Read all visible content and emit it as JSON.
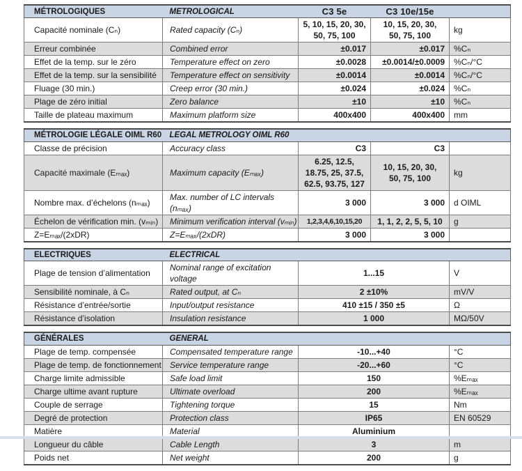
{
  "colors": {
    "section_band_bg": "#c9d4e4",
    "alt_row_bg": "#dcdcdc",
    "border_dark": "#4b4b4b",
    "border_light": "#7d7d7d",
    "text": "#1a1a1a",
    "page_bottom_edge": "#d8dee9"
  },
  "sections": [
    {
      "header": {
        "fr": "MÉTROLOGIQUES",
        "en": "METROLOGICAL",
        "col1": "C3 5e",
        "col2": "C3 10e/15e"
      },
      "rows": [
        {
          "fr": "Capacité nominale (Cₙ)",
          "en": "Rated capacity (Cₙ)",
          "v1": "5, 10, 15, 20, 30,\n50, 75, 100",
          "v2": "10, 15, 20, 30,\n50, 75, 100",
          "unit": "kg"
        },
        {
          "fr": "Erreur combinée",
          "en": "Combined error",
          "v1": "±0.017",
          "v2": "±0.017",
          "unit": "%Cₙ"
        },
        {
          "fr": "Effet de la temp. sur le zéro",
          "en": "Temperature effect on zero",
          "v1": "±0.0028",
          "v2": "±0.0014/±0.0009",
          "unit": "%Cₙ/°C"
        },
        {
          "fr": "Effet de la temp. sur la sensibilité",
          "en": "Temperature effect on sensitivity",
          "v1": "±0.0014",
          "v2": "±0.0014",
          "unit": "%Cₙ/°C"
        },
        {
          "fr": "Fluage (30 min.)",
          "en": "Creep error (30 min.)",
          "v1": "±0.024",
          "v2": "±0.024",
          "unit": "%Cₙ"
        },
        {
          "fr": "Plage de zéro initial",
          "en": "Zero balance",
          "v1": "±10",
          "v2": "±10",
          "unit": "%Cₙ"
        },
        {
          "fr": "Taille de plateau maximum",
          "en": "Maximum platform size",
          "v1": "400x400",
          "v2": "400x400",
          "unit": "mm"
        }
      ]
    },
    {
      "header": {
        "fr": "MÉTROLOGIE LÉGALE OIML R60",
        "en": "LEGAL METROLOGY OIML R60"
      },
      "rows": [
        {
          "fr": "Classe de précision",
          "en": "Accuracy class",
          "v1": "C3",
          "v2": "C3",
          "unit": ""
        },
        {
          "fr": "Capacité maximale (Eₘₐₓ)",
          "en": "Maximum capacity (Eₘₐₓ)",
          "v1": "6.25, 12.5,\n18.75, 25, 37.5,\n62.5, 93.75, 127",
          "v2": "10, 15, 20, 30,\n50, 75, 100",
          "unit": "kg"
        },
        {
          "fr": "Nombre max. d’échelons (nₘₐₓ)",
          "en": "Max. number of LC intervals (nₘₐₓ)",
          "v1": "3 000",
          "v2": "3 000",
          "unit": "d OIML"
        },
        {
          "fr": "Échelon de vérification min. (vₘᵢₙ)",
          "en": "Minimum verification interval (vₘᵢₙ)",
          "v1": "1,2,3,4,6,10,15,20",
          "v2": "1, 1, 2, 2, 5, 5, 10",
          "unit": "g"
        },
        {
          "fr": "Z=Eₘₐₓ/(2xDR)",
          "en": "Z=Eₘₐₓ/(2xDR)",
          "v1": "3 000",
          "v2": "3 000",
          "unit": ""
        }
      ]
    },
    {
      "header": {
        "fr": "ELECTRIQUES",
        "en": "ELECTRICAL"
      },
      "rows": [
        {
          "fr": "Plage de tension d’alimentation",
          "en": "Nominal range of excitation voltage",
          "v": "1...15",
          "unit": "V"
        },
        {
          "fr": "Sensibilité nominale, à Cₙ",
          "en": "Rated output, at Cₙ",
          "v": "2 ±10%",
          "unit": "mV/V"
        },
        {
          "fr": "Résistance d’entrée/sortie",
          "en": "Input/output resistance",
          "v": "410 ±15 / 350 ±5",
          "unit": "Ω"
        },
        {
          "fr": "Résistance d’isolation",
          "en": "Insulation resistance",
          "v": "1 000",
          "unit": "MΩ/50V"
        }
      ]
    },
    {
      "header": {
        "fr": "GÉNÉRALES",
        "en": "GENERAL"
      },
      "rows": [
        {
          "fr": "Plage de temp. compensée",
          "en": "Compensated temperature range",
          "v": "-10...+40",
          "unit": "°C"
        },
        {
          "fr": "Plage de temp. de fonctionnement",
          "en": "Service temperature range",
          "v": "-20...+60",
          "unit": "°C"
        },
        {
          "fr": "Charge limite admissible",
          "en": "Safe load limit",
          "v": "150",
          "unit": "%Eₘₐₓ"
        },
        {
          "fr": "Charge ultime avant rupture",
          "en": "Ultimate overload",
          "v": "200",
          "unit": "%Eₘₐₓ"
        },
        {
          "fr": "Couple de serrage",
          "en": "Tightening torque",
          "v": "15",
          "unit": "Nm"
        },
        {
          "fr": "Degré de protection",
          "en": "Protection class",
          "v": "IP65",
          "unit": "EN 60529"
        },
        {
          "fr": "Matière",
          "en": "Material",
          "v": "Aluminium",
          "unit": ""
        },
        {
          "fr": "Longueur du câble",
          "en": "Cable Length",
          "v": "3",
          "unit": "m"
        },
        {
          "fr": "Poids net",
          "en": "Net weight",
          "v": "200",
          "unit": "g"
        }
      ]
    }
  ]
}
